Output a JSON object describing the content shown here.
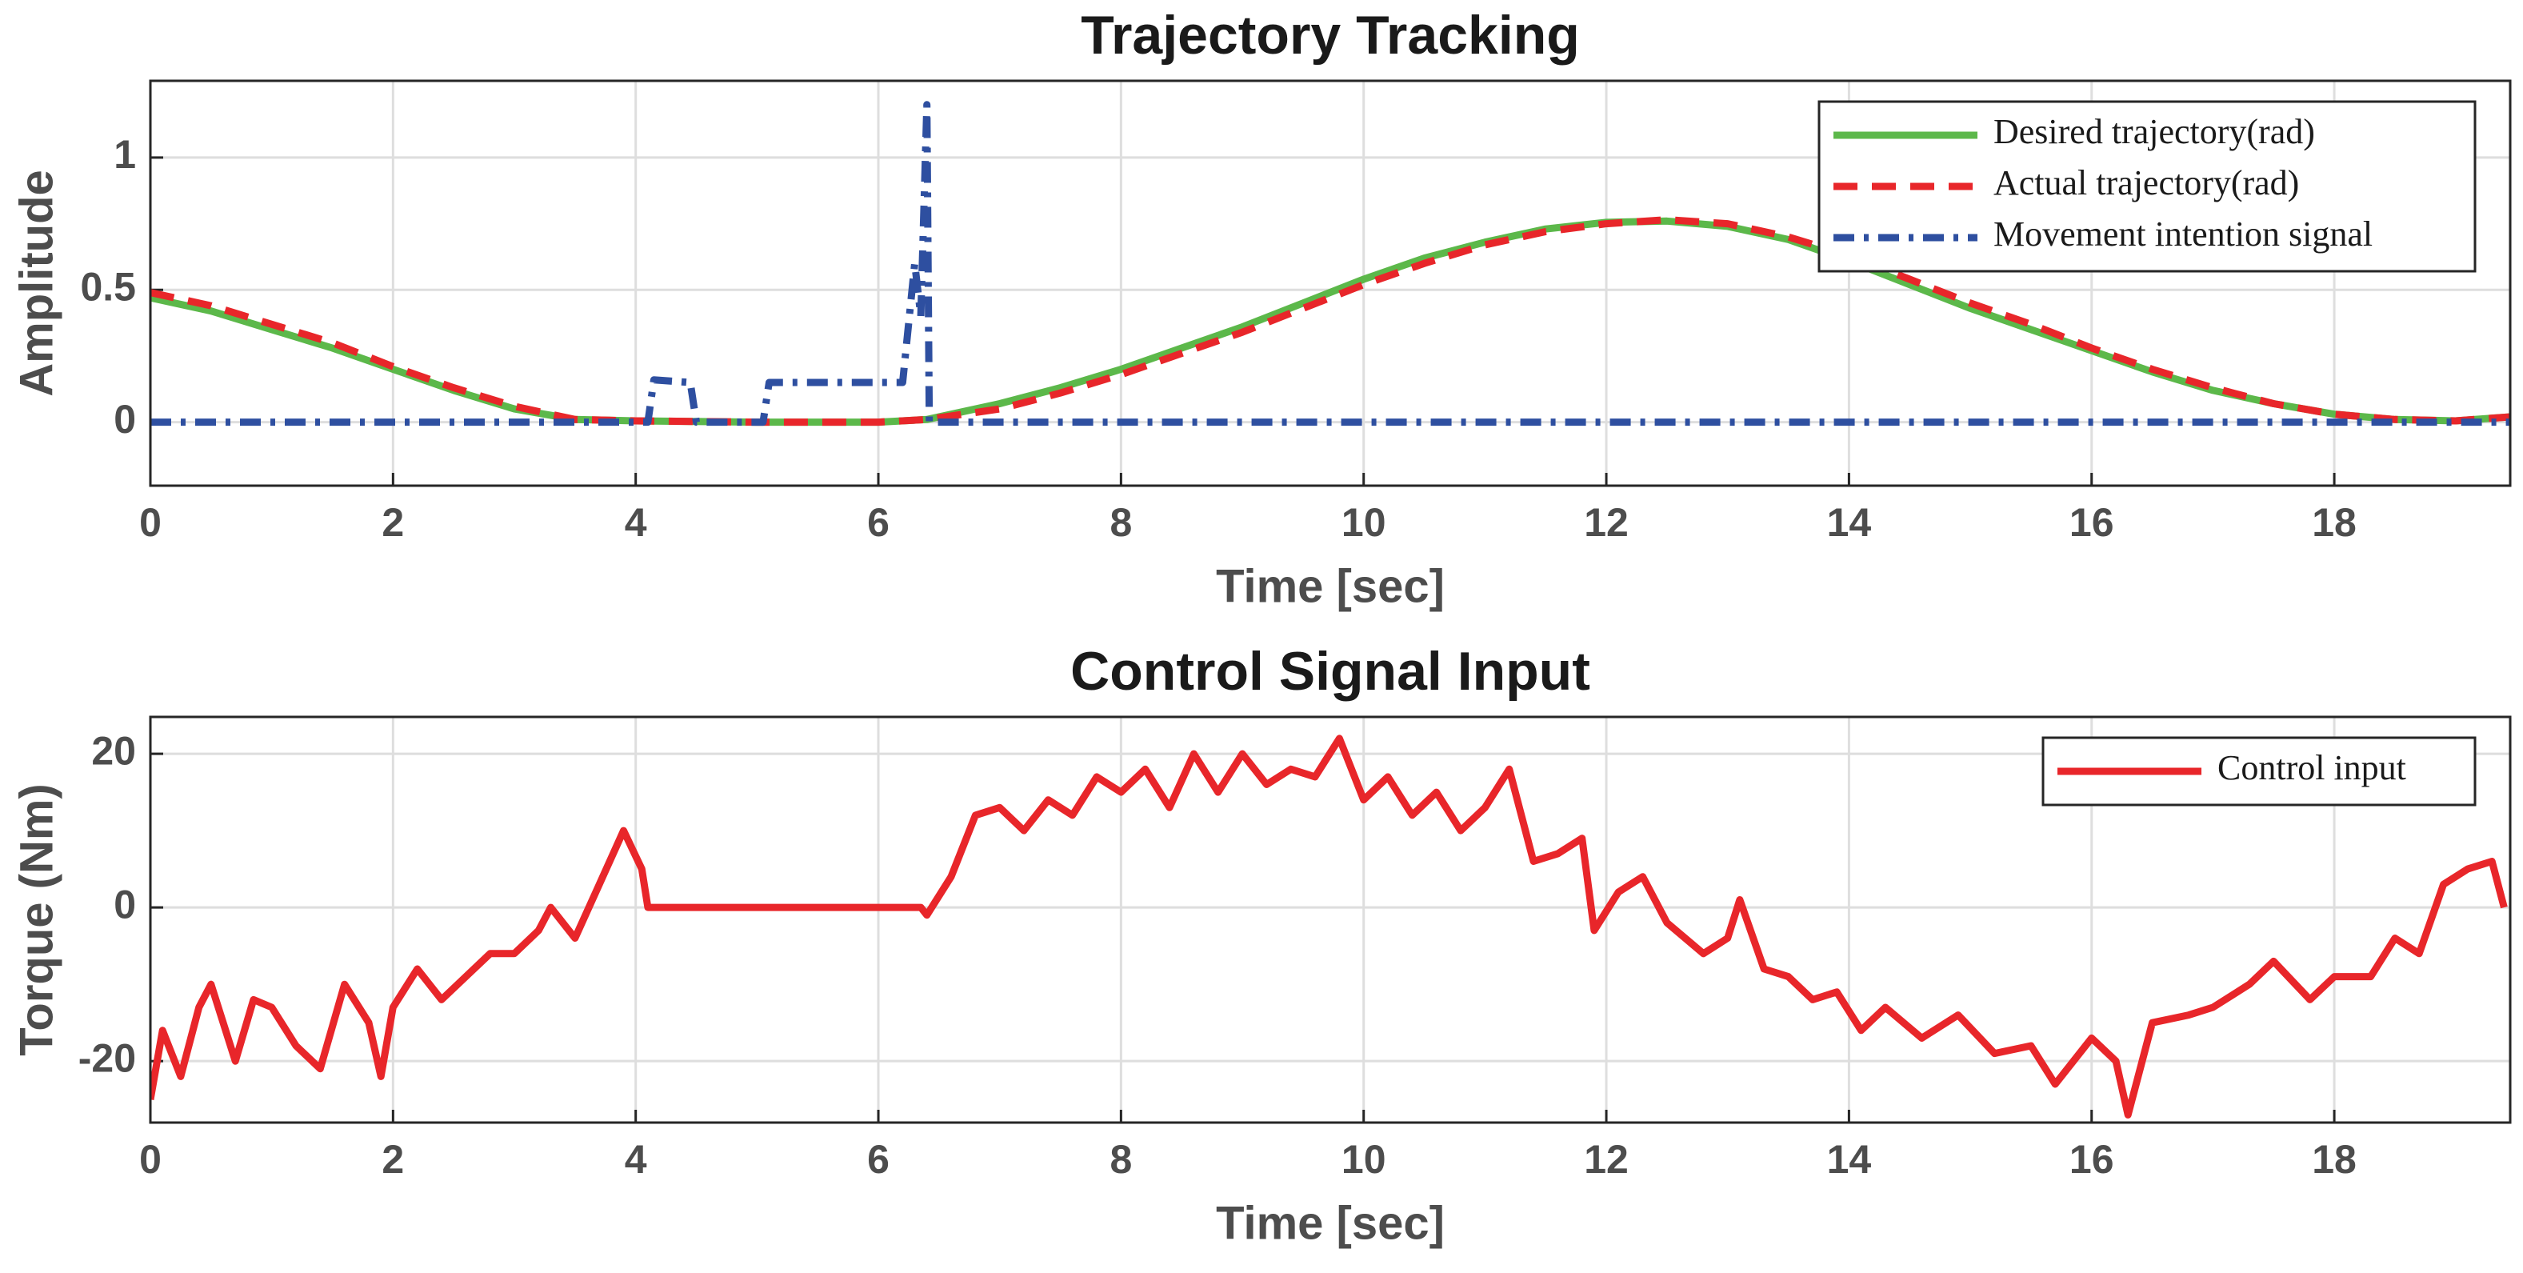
{
  "chart_data": [
    {
      "type": "line",
      "title": "Trajectory Tracking",
      "xlabel": "Time [sec]",
      "ylabel": "Amplitude",
      "xlim": [
        0,
        19.45
      ],
      "ylim": [
        -0.24,
        1.29
      ],
      "xticks": [
        0,
        2,
        4,
        6,
        8,
        10,
        12,
        14,
        16,
        18
      ],
      "yticks": [
        0,
        0.5,
        1
      ],
      "grid": true,
      "legend": "northeast",
      "series": [
        {
          "name": "Desired trajectory(rad)",
          "color": "#5cb84a",
          "style": "solid",
          "x": [
            0,
            0.5,
            1,
            1.5,
            2,
            2.5,
            3,
            3.5,
            4,
            5,
            6,
            6.4,
            7,
            7.5,
            8,
            8.5,
            9,
            9.5,
            10,
            10.5,
            11,
            11.5,
            12,
            12.5,
            13,
            13.5,
            14,
            14.5,
            15,
            15.5,
            16,
            16.5,
            17,
            17.5,
            18,
            18.5,
            19,
            19.45
          ],
          "values": [
            0.47,
            0.42,
            0.35,
            0.28,
            0.2,
            0.12,
            0.05,
            0.01,
            0.005,
            0,
            0,
            0.01,
            0.07,
            0.13,
            0.2,
            0.28,
            0.36,
            0.45,
            0.54,
            0.62,
            0.68,
            0.73,
            0.755,
            0.76,
            0.74,
            0.69,
            0.61,
            0.52,
            0.43,
            0.35,
            0.27,
            0.19,
            0.12,
            0.07,
            0.03,
            0.01,
            0.005,
            0.02
          ]
        },
        {
          "name": "Actual trajectory(rad)",
          "color": "#e8262a",
          "style": "dashed",
          "x": [
            0,
            0.5,
            1,
            1.5,
            2,
            2.5,
            3,
            3.5,
            4,
            5,
            6,
            6.4,
            7,
            7.5,
            8,
            8.5,
            9,
            9.5,
            10,
            10.5,
            11,
            11.5,
            12,
            12.5,
            13,
            13.5,
            14,
            14.5,
            15,
            15.5,
            16,
            16.5,
            17,
            17.5,
            18,
            18.5,
            19,
            19.45
          ],
          "values": [
            0.49,
            0.44,
            0.37,
            0.3,
            0.21,
            0.13,
            0.06,
            0.01,
            0.005,
            0,
            0,
            0.01,
            0.05,
            0.11,
            0.18,
            0.26,
            0.34,
            0.43,
            0.52,
            0.6,
            0.67,
            0.72,
            0.75,
            0.765,
            0.75,
            0.7,
            0.63,
            0.54,
            0.45,
            0.37,
            0.28,
            0.2,
            0.13,
            0.07,
            0.03,
            0.01,
            0.005,
            0.02
          ]
        },
        {
          "name": "Movement intention signal",
          "color": "#2e4fa0",
          "style": "dashdot",
          "x": [
            0,
            4.1,
            4.15,
            4.45,
            4.5,
            5.05,
            5.1,
            6.2,
            6.3,
            6.35,
            6.4,
            6.42,
            6.45,
            19.45
          ],
          "values": [
            0,
            0,
            0.16,
            0.15,
            0,
            0,
            0.15,
            0.15,
            0.6,
            0.4,
            1.2,
            0,
            0,
            0
          ]
        }
      ]
    },
    {
      "type": "line",
      "title": "Control Signal Input",
      "xlabel": "Time [sec]",
      "ylabel": "Torque (Nm)",
      "xlim": [
        0,
        19.45
      ],
      "ylim": [
        -28,
        24.8
      ],
      "xticks": [
        0,
        2,
        4,
        6,
        8,
        10,
        12,
        14,
        16,
        18
      ],
      "yticks": [
        -20,
        0,
        20
      ],
      "grid": true,
      "legend": "northeast",
      "series": [
        {
          "name": "Control input",
          "color": "#e8262a",
          "style": "solid",
          "x": [
            0,
            0.1,
            0.25,
            0.4,
            0.5,
            0.7,
            0.85,
            1,
            1.2,
            1.4,
            1.6,
            1.8,
            1.9,
            2,
            2.2,
            2.4,
            2.6,
            2.8,
            3,
            3.2,
            3.3,
            3.5,
            3.7,
            3.9,
            4.05,
            4.1,
            6.35,
            6.4,
            6.6,
            6.8,
            7,
            7.2,
            7.4,
            7.6,
            7.8,
            8,
            8.2,
            8.4,
            8.6,
            8.8,
            9,
            9.2,
            9.4,
            9.6,
            9.8,
            10,
            10.2,
            10.4,
            10.6,
            10.8,
            11,
            11.2,
            11.4,
            11.6,
            11.8,
            11.9,
            12.1,
            12.3,
            12.5,
            12.8,
            13,
            13.1,
            13.3,
            13.5,
            13.7,
            13.9,
            14.1,
            14.3,
            14.6,
            14.9,
            15.2,
            15.5,
            15.7,
            16,
            16.2,
            16.3,
            16.5,
            16.8,
            17,
            17.3,
            17.5,
            17.8,
            18,
            18.3,
            18.5,
            18.7,
            18.9,
            19.1,
            19.3,
            19.4
          ],
          "values": [
            -25,
            -16,
            -22,
            -13,
            -10,
            -20,
            -12,
            -13,
            -18,
            -21,
            -10,
            -15,
            -22,
            -13,
            -8,
            -12,
            -9,
            -6,
            -6,
            -3,
            0,
            -4,
            3,
            10,
            5,
            0,
            0,
            -1,
            4,
            12,
            13,
            10,
            14,
            12,
            17,
            15,
            18,
            13,
            20,
            15,
            20,
            16,
            18,
            17,
            22,
            14,
            17,
            12,
            15,
            10,
            13,
            18,
            6,
            7,
            9,
            -3,
            2,
            4,
            -2,
            -6,
            -4,
            1,
            -8,
            -9,
            -12,
            -11,
            -16,
            -13,
            -17,
            -14,
            -19,
            -18,
            -23,
            -17,
            -20,
            -27,
            -15,
            -14,
            -13,
            -10,
            -7,
            -12,
            -9,
            -9,
            -4,
            -6,
            3,
            5,
            6,
            0
          ]
        }
      ]
    }
  ]
}
